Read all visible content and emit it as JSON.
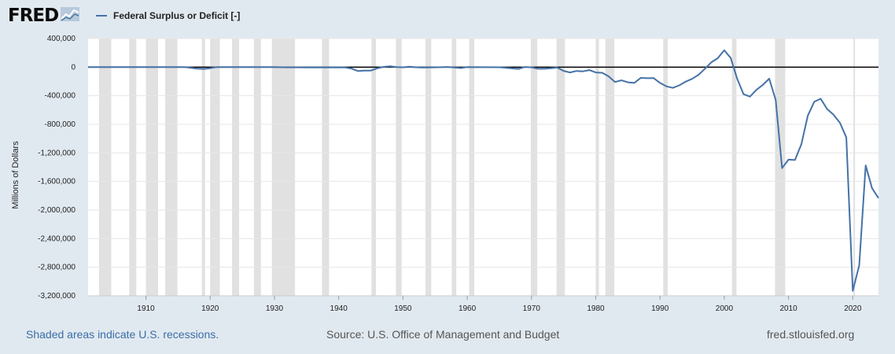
{
  "logo": {
    "text": "FRED",
    "icon": "fred-chart-icon"
  },
  "legend": {
    "label": "Federal Surplus or Deficit [-]",
    "color": "#4572a7"
  },
  "footer": {
    "recessions_note": "Shaded areas indicate U.S. recessions.",
    "source": "Source: U.S. Office of Management and Budget",
    "site": "fred.stlouisfed.org"
  },
  "colors": {
    "background": "#e1e9f0",
    "plot_bg": "#ffffff",
    "recession": "#e1e1e1",
    "line": "#4572a7",
    "zero_line": "#000000",
    "grid": "#e6e6e6"
  },
  "chart_data": {
    "type": "line",
    "title": "",
    "xlabel": "",
    "ylabel": "Millions of Dollars",
    "xlim": [
      1901,
      2024
    ],
    "ylim": [
      -3200000,
      400000
    ],
    "yticks": [
      400000,
      0,
      -400000,
      -800000,
      -1200000,
      -1600000,
      -2000000,
      -2400000,
      -2800000,
      -3200000
    ],
    "ytick_labels": [
      "400,000",
      "0",
      "-400,000",
      "-800,000",
      "-1,200,000",
      "-1,600,000",
      "-2,000,000",
      "-2,400,000",
      "-2,800,000",
      "-3,200,000"
    ],
    "xticks": [
      1910,
      1920,
      1930,
      1940,
      1950,
      1960,
      1970,
      1980,
      1990,
      2000,
      2010,
      2020
    ],
    "xtick_labels": [
      "1910",
      "1920",
      "1930",
      "1940",
      "1950",
      "1960",
      "1970",
      "1980",
      "1990",
      "2000",
      "2010",
      "2020"
    ],
    "grid": true,
    "legend_position": "top-left",
    "recessions": [
      [
        1902.7,
        1904.6
      ],
      [
        1907.4,
        1908.5
      ],
      [
        1910.0,
        1911.9
      ],
      [
        1913.0,
        1914.9
      ],
      [
        1918.7,
        1919.2
      ],
      [
        1920.0,
        1921.5
      ],
      [
        1923.4,
        1924.5
      ],
      [
        1926.8,
        1927.9
      ],
      [
        1929.6,
        1933.2
      ],
      [
        1937.4,
        1938.5
      ],
      [
        1945.1,
        1945.8
      ],
      [
        1948.9,
        1949.8
      ],
      [
        1953.5,
        1954.4
      ],
      [
        1957.6,
        1958.3
      ],
      [
        1960.3,
        1961.1
      ],
      [
        1969.9,
        1970.9
      ],
      [
        1973.9,
        1975.2
      ],
      [
        1980.0,
        1980.5
      ],
      [
        1981.5,
        1982.9
      ],
      [
        1990.5,
        1991.2
      ],
      [
        2001.2,
        2001.9
      ],
      [
        2007.9,
        2009.5
      ],
      [
        2020.1,
        2020.3
      ]
    ],
    "series": [
      {
        "name": "Federal Surplus or Deficit [-]",
        "x": [
          1901,
          1910,
          1916,
          1917,
          1918,
          1919,
          1920,
          1921,
          1925,
          1930,
          1932,
          1935,
          1940,
          1941,
          1942,
          1943,
          1944,
          1945,
          1946,
          1947,
          1948,
          1949,
          1950,
          1951,
          1952,
          1953,
          1955,
          1957,
          1959,
          1960,
          1965,
          1968,
          1969,
          1970,
          1971,
          1972,
          1973,
          1974,
          1975,
          1976,
          1977,
          1978,
          1979,
          1980,
          1981,
          1982,
          1983,
          1984,
          1985,
          1986,
          1987,
          1988,
          1989,
          1990,
          1991,
          1992,
          1993,
          1994,
          1995,
          1996,
          1997,
          1998,
          1999,
          2000,
          2001,
          2002,
          2003,
          2004,
          2005,
          2006,
          2007,
          2008,
          2009,
          2010,
          2011,
          2012,
          2013,
          2014,
          2015,
          2016,
          2017,
          2018,
          2019,
          2020,
          2021,
          2022,
          2023,
          2024
        ],
        "y": [
          0,
          0,
          0,
          -10000,
          -20000,
          -25000,
          -15000,
          0,
          0,
          0,
          -3000,
          -4000,
          -3000,
          -5000,
          -20000,
          -55000,
          -48000,
          -48000,
          -16000,
          4000,
          11000,
          1000,
          -3000,
          6000,
          -2000,
          -6000,
          -3000,
          3000,
          -13000,
          0,
          -1500,
          -25000,
          3000,
          -3000,
          -23000,
          -23000,
          -15000,
          -6000,
          -53000,
          -74000,
          -54000,
          -59000,
          -41000,
          -74000,
          -79000,
          -128000,
          -208000,
          -185000,
          -212000,
          -221000,
          -150000,
          -155000,
          -153000,
          -221000,
          -269000,
          -290000,
          -255000,
          -203000,
          -164000,
          -107000,
          -22000,
          69000,
          126000,
          236000,
          128000,
          -158000,
          -378000,
          -413000,
          -318000,
          -248000,
          -161000,
          -459000,
          -1413000,
          -1294000,
          -1300000,
          -1077000,
          -680000,
          -485000,
          -442000,
          -585000,
          -665000,
          -779000,
          -984000,
          -3132000,
          -2775000,
          -1376000,
          -1694000,
          -1833000
        ]
      }
    ]
  }
}
